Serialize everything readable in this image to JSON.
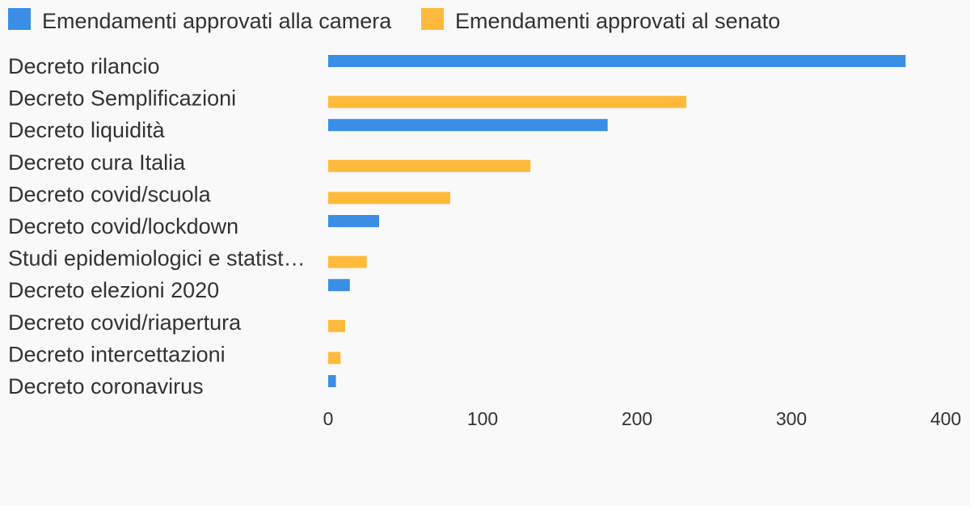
{
  "chart_data": {
    "type": "bar",
    "orientation": "horizontal",
    "categories": [
      "Decreto rilancio",
      "Decreto Semplificazioni",
      "Decreto liquidità",
      "Decreto cura Italia",
      "Decreto covid/scuola",
      "Decreto covid/lockdown",
      "Studi epidemiologici e statist…",
      "Decreto elezioni 2020",
      "Decreto covid/riapertura",
      "Decreto intercettazioni",
      "Decreto coronavirus"
    ],
    "series": [
      {
        "name": "Emendamenti approvati alla camera",
        "color": "#3a8ee6",
        "values": [
          374,
          null,
          181,
          null,
          null,
          33,
          null,
          14,
          null,
          null,
          5
        ]
      },
      {
        "name": "Emendamenti approvati al senato",
        "color": "#ffb93b",
        "values": [
          null,
          232,
          null,
          131,
          79,
          null,
          25,
          null,
          11,
          8,
          null
        ]
      }
    ],
    "xlim": [
      0,
      400
    ],
    "xticks": [
      "0",
      "100",
      "200",
      "300",
      "400"
    ],
    "legend_position": "top-left",
    "grid": false
  }
}
